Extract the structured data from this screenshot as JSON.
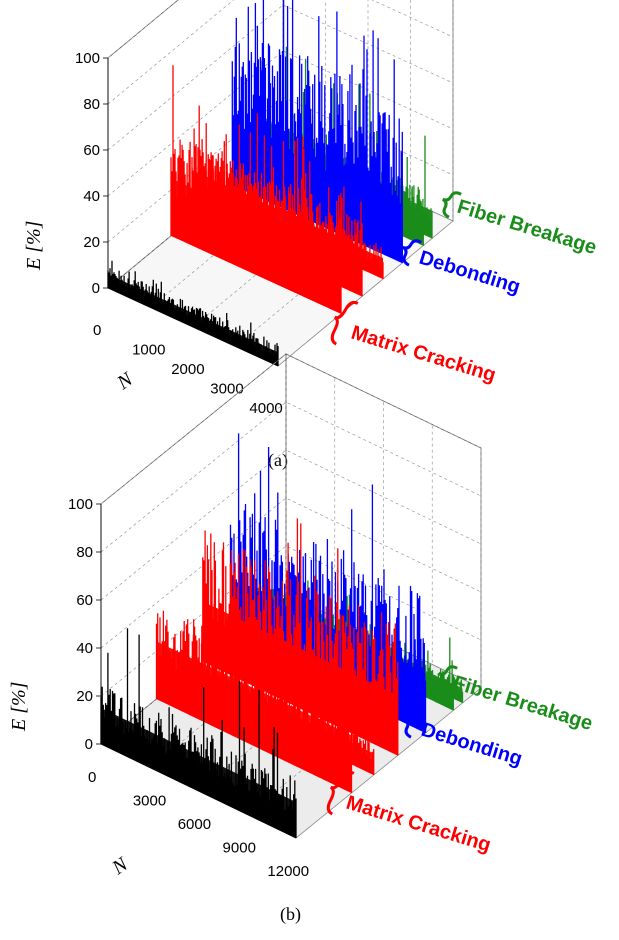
{
  "colors": {
    "fiber_breakage": "#1a8c1a",
    "debonding": "#0000ff",
    "matrix_cracking": "#ff0000",
    "unclassified": "#000000"
  },
  "chart_data": [
    {
      "panel": "(a)",
      "type": "3d-bar",
      "zlabel": "E [%]",
      "xlabel": "N",
      "zlim": [
        0,
        100
      ],
      "xlim": [
        0,
        4000
      ],
      "z_ticks": [
        "0",
        "20",
        "40",
        "60",
        "80",
        "100"
      ],
      "x_ticks": [
        "0",
        "1000",
        "2000",
        "3000",
        "4000"
      ],
      "series": [
        {
          "class": "unclassified",
          "typical_peak": 10,
          "max": 15
        },
        {
          "class": "matrix_cracking",
          "typical_peak": 45,
          "max": 75
        },
        {
          "class": "matrix_cracking",
          "typical_peak": 35,
          "max": 60
        },
        {
          "class": "matrix_cracking",
          "typical_peak": 15,
          "max": 30
        },
        {
          "class": "debonding",
          "typical_peak": 70,
          "max": 100
        },
        {
          "class": "fiber_breakage",
          "typical_peak": 25,
          "max": 60
        },
        {
          "class": "fiber_breakage",
          "typical_peak": 20,
          "max": 45
        }
      ],
      "groups": [
        {
          "label": "Matrix Cracking",
          "class": "matrix_cracking"
        },
        {
          "label": "Debonding",
          "class": "debonding"
        },
        {
          "label": "Fiber Breakage",
          "class": "fiber_breakage"
        }
      ]
    },
    {
      "panel": "(b)",
      "type": "3d-bar",
      "zlabel": "E [%]",
      "xlabel": "N",
      "zlim": [
        0,
        100
      ],
      "xlim": [
        0,
        12000
      ],
      "z_ticks": [
        "0",
        "20",
        "40",
        "60",
        "80",
        "100"
      ],
      "x_ticks": [
        "0",
        "3000",
        "6000",
        "9000",
        "12000"
      ],
      "series": [
        {
          "class": "unclassified",
          "typical_peak": 25,
          "max": 55
        },
        {
          "class": "matrix_cracking",
          "typical_peak": 40,
          "max": 70
        },
        {
          "class": "matrix_cracking",
          "typical_peak": 15,
          "max": 30
        },
        {
          "class": "matrix_cracking",
          "typical_peak": 55,
          "max": 90
        },
        {
          "class": "debonding",
          "typical_peak": 60,
          "max": 100
        },
        {
          "class": "fiber_breakage",
          "typical_peak": 15,
          "max": 30
        },
        {
          "class": "fiber_breakage",
          "typical_peak": 10,
          "max": 20
        }
      ],
      "groups": [
        {
          "label": "Matrix Cracking",
          "class": "matrix_cracking"
        },
        {
          "label": "Debonding",
          "class": "debonding"
        },
        {
          "label": "Fiber Breakage",
          "class": "fiber_breakage"
        }
      ]
    }
  ]
}
